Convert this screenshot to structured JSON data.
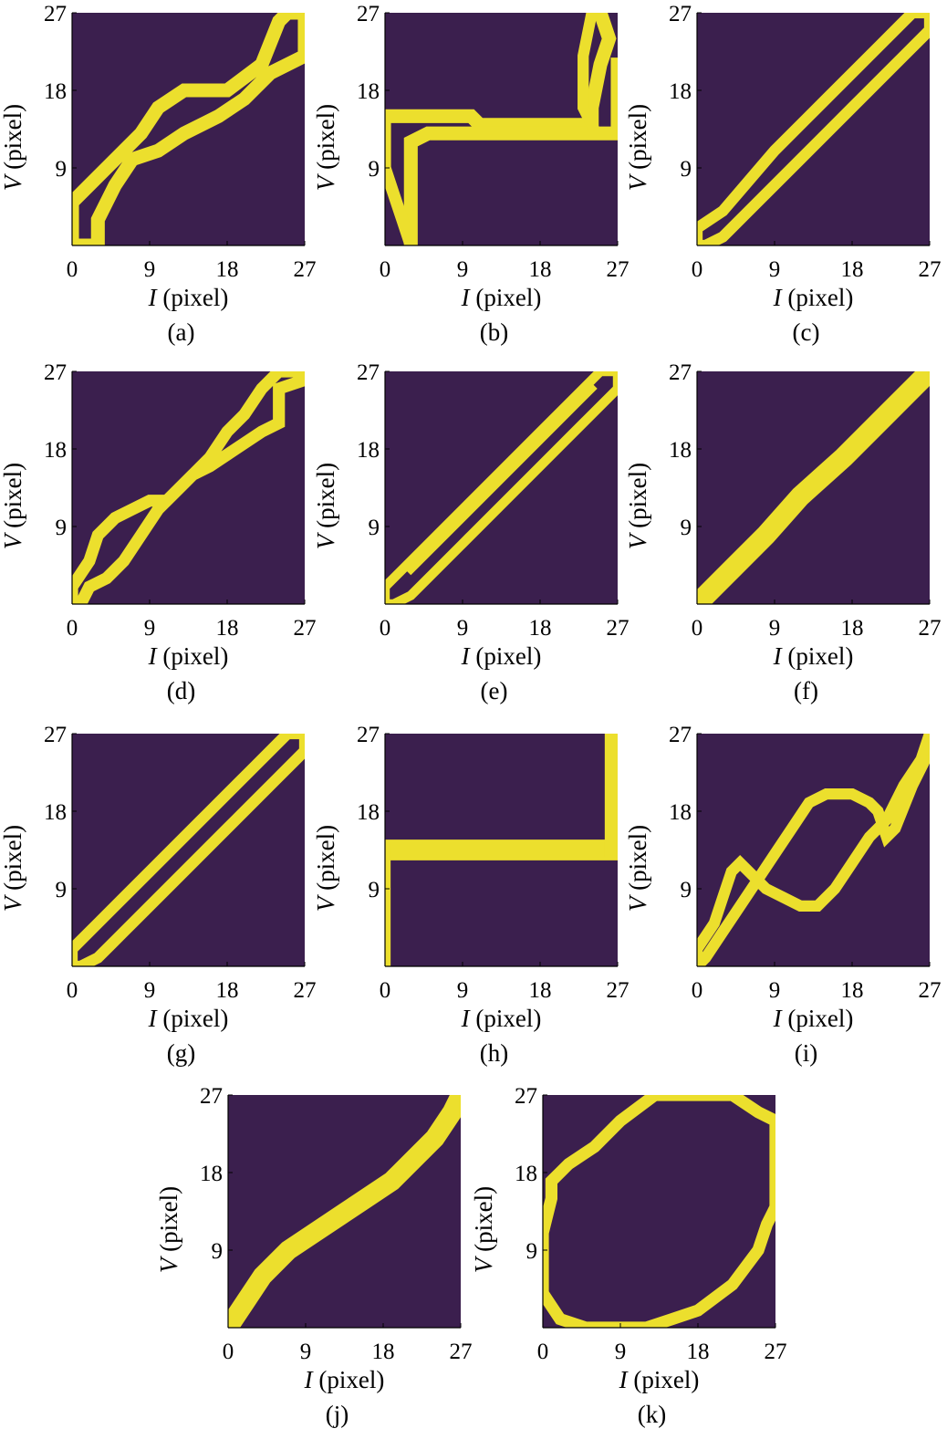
{
  "palette": {
    "background": "#3b1f4e",
    "trace": "#ecdf2d"
  },
  "chart_data": [
    {
      "type": "heatmap",
      "caption": "(a)",
      "xlabel": "I (pixel)",
      "ylabel": "V (pixel)",
      "xticks": [
        "0",
        "9",
        "18",
        "27"
      ],
      "yticks": [
        "9",
        "18",
        "27"
      ],
      "xlim": [
        0,
        27
      ],
      "ylim": [
        0,
        27
      ],
      "traces": [
        {
          "points": [
            [
              0,
              0
            ],
            [
              0,
              5
            ],
            [
              2,
              7
            ],
            [
              5,
              10
            ],
            [
              8,
              13
            ],
            [
              10,
              16
            ],
            [
              13,
              18
            ],
            [
              18,
              18
            ],
            [
              22,
              21
            ],
            [
              24,
              26
            ],
            [
              25,
              27
            ],
            [
              27,
              27
            ],
            [
              27,
              22
            ],
            [
              23,
              20
            ],
            [
              20,
              17
            ],
            [
              17,
              15
            ],
            [
              13,
              13
            ],
            [
              10,
              11
            ],
            [
              7,
              10
            ],
            [
              5,
              7
            ],
            [
              3,
              3
            ],
            [
              3,
              0
            ],
            [
              0,
              0
            ]
          ],
          "width": 1.6
        }
      ]
    },
    {
      "type": "heatmap",
      "caption": "(b)",
      "xlabel": "I (pixel)",
      "ylabel": "V (pixel)",
      "xticks": [
        "0",
        "9",
        "18",
        "27"
      ],
      "yticks": [
        "9",
        "18",
        "27"
      ],
      "xlim": [
        0,
        27
      ],
      "ylim": [
        0,
        27
      ],
      "traces": [
        {
          "points": [
            [
              0,
              15
            ],
            [
              10,
              15
            ],
            [
              11,
              14
            ],
            [
              24,
              14
            ],
            [
              24,
              16
            ],
            [
              25,
              21
            ],
            [
              26,
              24
            ],
            [
              25,
              27
            ]
          ],
          "width": 1.6
        },
        {
          "points": [
            [
              3,
              0
            ],
            [
              3,
              12
            ],
            [
              5,
              13
            ],
            [
              27,
              13
            ],
            [
              27,
              21
            ]
          ],
          "width": 1.6
        },
        {
          "points": [
            [
              0,
              15
            ],
            [
              0,
              9
            ],
            [
              1,
              6
            ],
            [
              2,
              3
            ],
            [
              3,
              0
            ]
          ],
          "width": 1.4
        },
        {
          "points": [
            [
              24,
              27
            ],
            [
              23,
              22
            ],
            [
              23,
              16
            ],
            [
              24,
              14
            ]
          ],
          "width": 1.3
        }
      ]
    },
    {
      "type": "heatmap",
      "caption": "(c)",
      "xlabel": "I (pixel)",
      "ylabel": "V (pixel)",
      "xticks": [
        "0",
        "9",
        "18",
        "27"
      ],
      "yticks": [
        "9",
        "18",
        "27"
      ],
      "xlim": [
        0,
        27
      ],
      "ylim": [
        0,
        27
      ],
      "traces": [
        {
          "points": [
            [
              0,
              0
            ],
            [
              0,
              2
            ],
            [
              3,
              4
            ],
            [
              9,
              11
            ],
            [
              15,
              17
            ],
            [
              21,
              23
            ],
            [
              24,
              26
            ],
            [
              25,
              27
            ],
            [
              27,
              27
            ],
            [
              27,
              25
            ],
            [
              24,
              22
            ],
            [
              18,
              16
            ],
            [
              12,
              10
            ],
            [
              6,
              4
            ],
            [
              3,
              1
            ],
            [
              1,
              0
            ],
            [
              0,
              0
            ]
          ],
          "width": 1.3
        }
      ]
    },
    {
      "type": "heatmap",
      "caption": "(d)",
      "xlabel": "I (pixel)",
      "ylabel": "V (pixel)",
      "xticks": [
        "0",
        "9",
        "18",
        "27"
      ],
      "yticks": [
        "9",
        "18",
        "27"
      ],
      "xlim": [
        0,
        27
      ],
      "ylim": [
        0,
        27
      ],
      "traces": [
        {
          "points": [
            [
              0,
              0
            ],
            [
              0,
              2
            ],
            [
              2,
              5
            ],
            [
              3,
              8
            ],
            [
              5,
              10
            ],
            [
              7,
              11
            ],
            [
              9,
              12
            ],
            [
              11,
              12
            ],
            [
              13,
              14
            ],
            [
              16,
              17
            ],
            [
              18,
              20
            ],
            [
              20,
              22
            ],
            [
              22,
              25
            ],
            [
              24,
              27
            ],
            [
              27,
              27
            ],
            [
              27,
              26
            ],
            [
              24,
              25
            ],
            [
              24,
              21
            ],
            [
              22,
              20
            ],
            [
              19,
              18
            ],
            [
              16,
              16
            ],
            [
              14,
              15
            ],
            [
              12,
              13
            ],
            [
              10,
              11
            ],
            [
              8,
              8
            ],
            [
              6,
              5
            ],
            [
              4,
              3
            ],
            [
              2,
              2
            ],
            [
              1,
              0
            ],
            [
              0,
              0
            ]
          ],
          "width": 1.4
        }
      ]
    },
    {
      "type": "heatmap",
      "caption": "(e)",
      "xlabel": "I (pixel)",
      "ylabel": "V (pixel)",
      "xticks": [
        "0",
        "9",
        "18",
        "27"
      ],
      "yticks": [
        "9",
        "18",
        "27"
      ],
      "xlim": [
        0,
        27
      ],
      "ylim": [
        0,
        27
      ],
      "traces": [
        {
          "points": [
            [
              0,
              0
            ],
            [
              0,
              2
            ],
            [
              6,
              8
            ],
            [
              12,
              14
            ],
            [
              18,
              20
            ],
            [
              22,
              24
            ],
            [
              25,
              27
            ],
            [
              27,
              27
            ],
            [
              27,
              25
            ],
            [
              21,
              19
            ],
            [
              15,
              13
            ],
            [
              9,
              7
            ],
            [
              3,
              1
            ],
            [
              1,
              0
            ],
            [
              0,
              0
            ]
          ],
          "width": 1.1
        },
        {
          "points": [
            [
              3,
              4
            ],
            [
              9,
              10
            ],
            [
              15,
              16
            ],
            [
              21,
              22
            ],
            [
              24,
              25
            ]
          ],
          "width": 0.9
        }
      ]
    },
    {
      "type": "heatmap",
      "caption": "(f)",
      "xlabel": "I (pixel)",
      "ylabel": "V (pixel)",
      "xticks": [
        "0",
        "9",
        "18",
        "27"
      ],
      "yticks": [
        "9",
        "18",
        "27"
      ],
      "xlim": [
        0,
        27
      ],
      "ylim": [
        0,
        27
      ],
      "traces": [
        {
          "points": [
            [
              0,
              0
            ],
            [
              4,
              4
            ],
            [
              8,
              8
            ],
            [
              12,
              12.5
            ],
            [
              17,
              17
            ],
            [
              22,
              22
            ],
            [
              25,
              25
            ],
            [
              27,
              27
            ]
          ],
          "width": 2.4
        }
      ]
    },
    {
      "type": "heatmap",
      "caption": "(g)",
      "xlabel": "I (pixel)",
      "ylabel": "V (pixel)",
      "xticks": [
        "0",
        "9",
        "18",
        "27"
      ],
      "yticks": [
        "9",
        "18",
        "27"
      ],
      "xlim": [
        0,
        27
      ],
      "ylim": [
        0,
        27
      ],
      "traces": [
        {
          "points": [
            [
              0,
              0
            ],
            [
              0,
              2
            ],
            [
              3,
              5
            ],
            [
              9,
              11
            ],
            [
              15,
              17
            ],
            [
              21,
              23
            ],
            [
              24,
              26
            ],
            [
              25,
              27
            ],
            [
              27,
              27
            ],
            [
              27,
              25
            ],
            [
              24,
              22
            ],
            [
              18,
              16
            ],
            [
              12,
              10
            ],
            [
              6,
              4
            ],
            [
              3,
              1
            ],
            [
              1,
              0
            ],
            [
              0,
              0
            ]
          ],
          "width": 1.3
        }
      ]
    },
    {
      "type": "heatmap",
      "caption": "(h)",
      "xlabel": "I (pixel)",
      "ylabel": "V (pixel)",
      "xticks": [
        "0",
        "9",
        "18",
        "27"
      ],
      "yticks": [
        "9",
        "18",
        "27"
      ],
      "xlim": [
        0,
        27
      ],
      "ylim": [
        0,
        27
      ],
      "traces": [
        {
          "points": [
            [
              0,
              13.5
            ],
            [
              27,
              13.5
            ]
          ],
          "width": 2.4
        },
        {
          "points": [
            [
              0,
              0
            ],
            [
              0,
              13.5
            ]
          ],
          "width": 1.3
        },
        {
          "points": [
            [
              26.3,
              13.5
            ],
            [
              26.3,
              27
            ]
          ],
          "width": 1.6
        }
      ]
    },
    {
      "type": "heatmap",
      "caption": "(i)",
      "xlabel": "I (pixel)",
      "ylabel": "V (pixel)",
      "xticks": [
        "0",
        "9",
        "18",
        "27"
      ],
      "yticks": [
        "9",
        "18",
        "27"
      ],
      "xlim": [
        0,
        27
      ],
      "ylim": [
        0,
        27
      ],
      "traces": [
        {
          "points": [
            [
              0,
              0
            ],
            [
              0,
              2
            ],
            [
              2,
              5
            ],
            [
              3,
              8
            ],
            [
              4,
              11
            ],
            [
              5,
              12
            ],
            [
              6,
              11
            ],
            [
              8,
              9
            ],
            [
              10,
              8
            ],
            [
              12,
              7
            ],
            [
              14,
              7
            ],
            [
              16,
              9
            ],
            [
              18,
              12
            ],
            [
              20,
              15
            ],
            [
              22,
              17
            ],
            [
              24,
              21
            ],
            [
              26,
              24
            ],
            [
              27,
              27
            ],
            [
              27,
              25
            ],
            [
              25,
              21
            ],
            [
              23,
              16
            ],
            [
              22,
              15
            ],
            [
              21,
              18
            ],
            [
              20,
              19
            ],
            [
              18,
              20
            ],
            [
              15,
              20
            ],
            [
              13,
              19
            ],
            [
              11,
              16
            ],
            [
              9,
              13
            ],
            [
              7,
              10
            ],
            [
              5,
              7
            ],
            [
              3,
              4
            ],
            [
              1,
              1
            ],
            [
              0,
              0
            ]
          ],
          "width": 1.3
        }
      ]
    },
    {
      "type": "heatmap",
      "caption": "(j)",
      "xlabel": "I (pixel)",
      "ylabel": "V (pixel)",
      "xticks": [
        "0",
        "9",
        "18",
        "27"
      ],
      "yticks": [
        "9",
        "18",
        "27"
      ],
      "xlim": [
        0,
        27
      ],
      "ylim": [
        0,
        27
      ],
      "traces": [
        {
          "points": [
            [
              0,
              0
            ],
            [
              2,
              3
            ],
            [
              4,
              6
            ],
            [
              7,
              9
            ],
            [
              10,
              11
            ],
            [
              13,
              13
            ],
            [
              16,
              15
            ],
            [
              19,
              17
            ],
            [
              22,
              20
            ],
            [
              24,
              22
            ],
            [
              26,
              25
            ],
            [
              27,
              27
            ]
          ],
          "width": 2.3
        }
      ]
    },
    {
      "type": "heatmap",
      "caption": "(k)",
      "xlabel": "I (pixel)",
      "ylabel": "V (pixel)",
      "xticks": [
        "0",
        "9",
        "18",
        "27"
      ],
      "yticks": [
        "9",
        "18",
        "27"
      ],
      "xlim": [
        0,
        27
      ],
      "ylim": [
        0,
        27
      ],
      "traces": [
        {
          "points": [
            [
              13,
              27
            ],
            [
              22,
              27
            ],
            [
              25,
              25
            ],
            [
              27,
              24
            ],
            [
              27,
              14
            ],
            [
              26,
              12
            ],
            [
              25,
              9
            ],
            [
              22,
              5
            ],
            [
              18,
              2
            ],
            [
              15,
              1
            ],
            [
              12,
              0
            ],
            [
              5,
              0
            ],
            [
              2,
              1
            ],
            [
              0,
              4
            ],
            [
              0,
              11
            ],
            [
              1,
              15
            ],
            [
              1,
              17
            ],
            [
              3,
              19
            ],
            [
              6,
              21
            ],
            [
              9,
              24
            ],
            [
              13,
              27
            ]
          ],
          "width": 1.4
        }
      ]
    }
  ]
}
